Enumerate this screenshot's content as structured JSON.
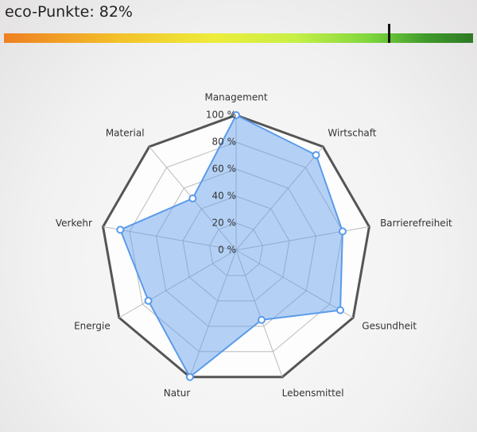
{
  "header": {
    "label": "eco-Punkte: 82%",
    "score": 82,
    "scale": [
      0,
      100
    ]
  },
  "chart_data": {
    "type": "radar",
    "categories": [
      "Management",
      "Wirtschaft",
      "Barrierefreiheit",
      "Gesundheit",
      "Lebensmittel",
      "Natur",
      "Energie",
      "Verkehr",
      "Material"
    ],
    "values": [
      100,
      92,
      80,
      89,
      55,
      100,
      75,
      87,
      50
    ],
    "color": "#5b9bea",
    "rlim": [
      0,
      100
    ],
    "rticks": [
      {
        "value": 0,
        "label": "0 %"
      },
      {
        "value": 20,
        "label": "20 %"
      },
      {
        "value": 40,
        "label": "40 %"
      },
      {
        "value": 60,
        "label": "60 %"
      },
      {
        "value": 80,
        "label": "80 %"
      },
      {
        "value": 100,
        "label": "100 %"
      }
    ],
    "grid": true
  }
}
